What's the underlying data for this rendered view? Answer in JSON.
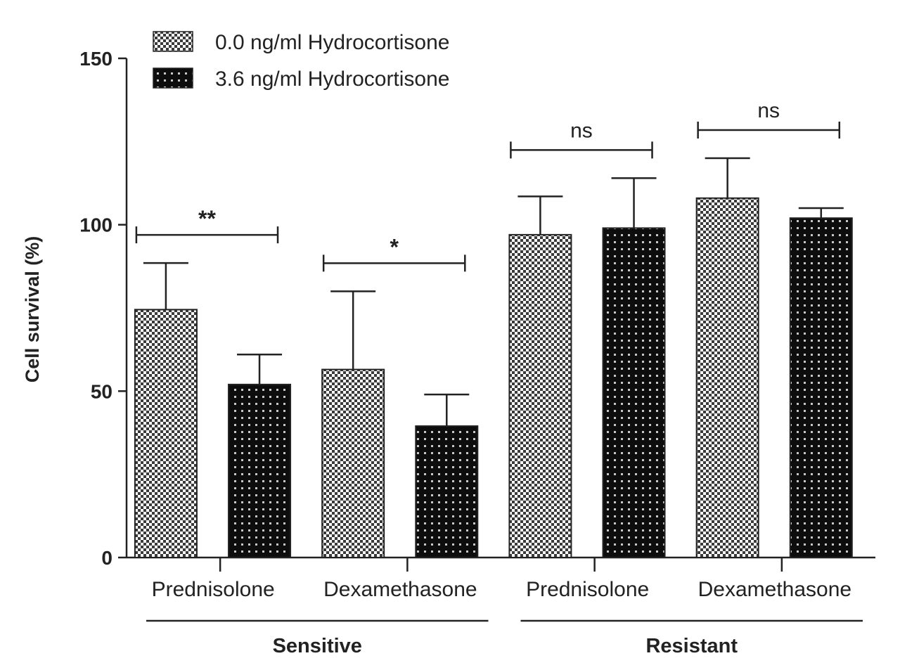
{
  "chart_data": {
    "type": "bar",
    "ylabel": "Cell survival (%)",
    "ylim": [
      0,
      150
    ],
    "yticks": [
      0,
      50,
      100,
      150
    ],
    "grid": false,
    "legend_position": "top-left",
    "groups": [
      {
        "name": "Sensitive",
        "categories": [
          "Prednisolone",
          "Dexamethasone"
        ]
      },
      {
        "name": "Resistant",
        "categories": [
          "Prednisolone",
          "Dexamethasone"
        ]
      }
    ],
    "categories": [
      "Prednisolone",
      "Dexamethasone",
      "Prednisolone",
      "Dexamethasone"
    ],
    "series": [
      {
        "name": "0.0 ng/ml Hydrocortisone",
        "pattern": "checker-light",
        "values": [
          74.5,
          56.5,
          97.0,
          108.0
        ],
        "errors": [
          14.0,
          23.5,
          11.5,
          12.0
        ]
      },
      {
        "name": "3.6 ng/ml Hydrocortisone",
        "pattern": "dotted-dark",
        "values": [
          52.0,
          39.5,
          99.0,
          102.0
        ],
        "errors": [
          9.0,
          9.5,
          15.0,
          3.0
        ]
      }
    ],
    "significance": [
      "**",
      "*",
      "ns",
      "ns"
    ]
  }
}
